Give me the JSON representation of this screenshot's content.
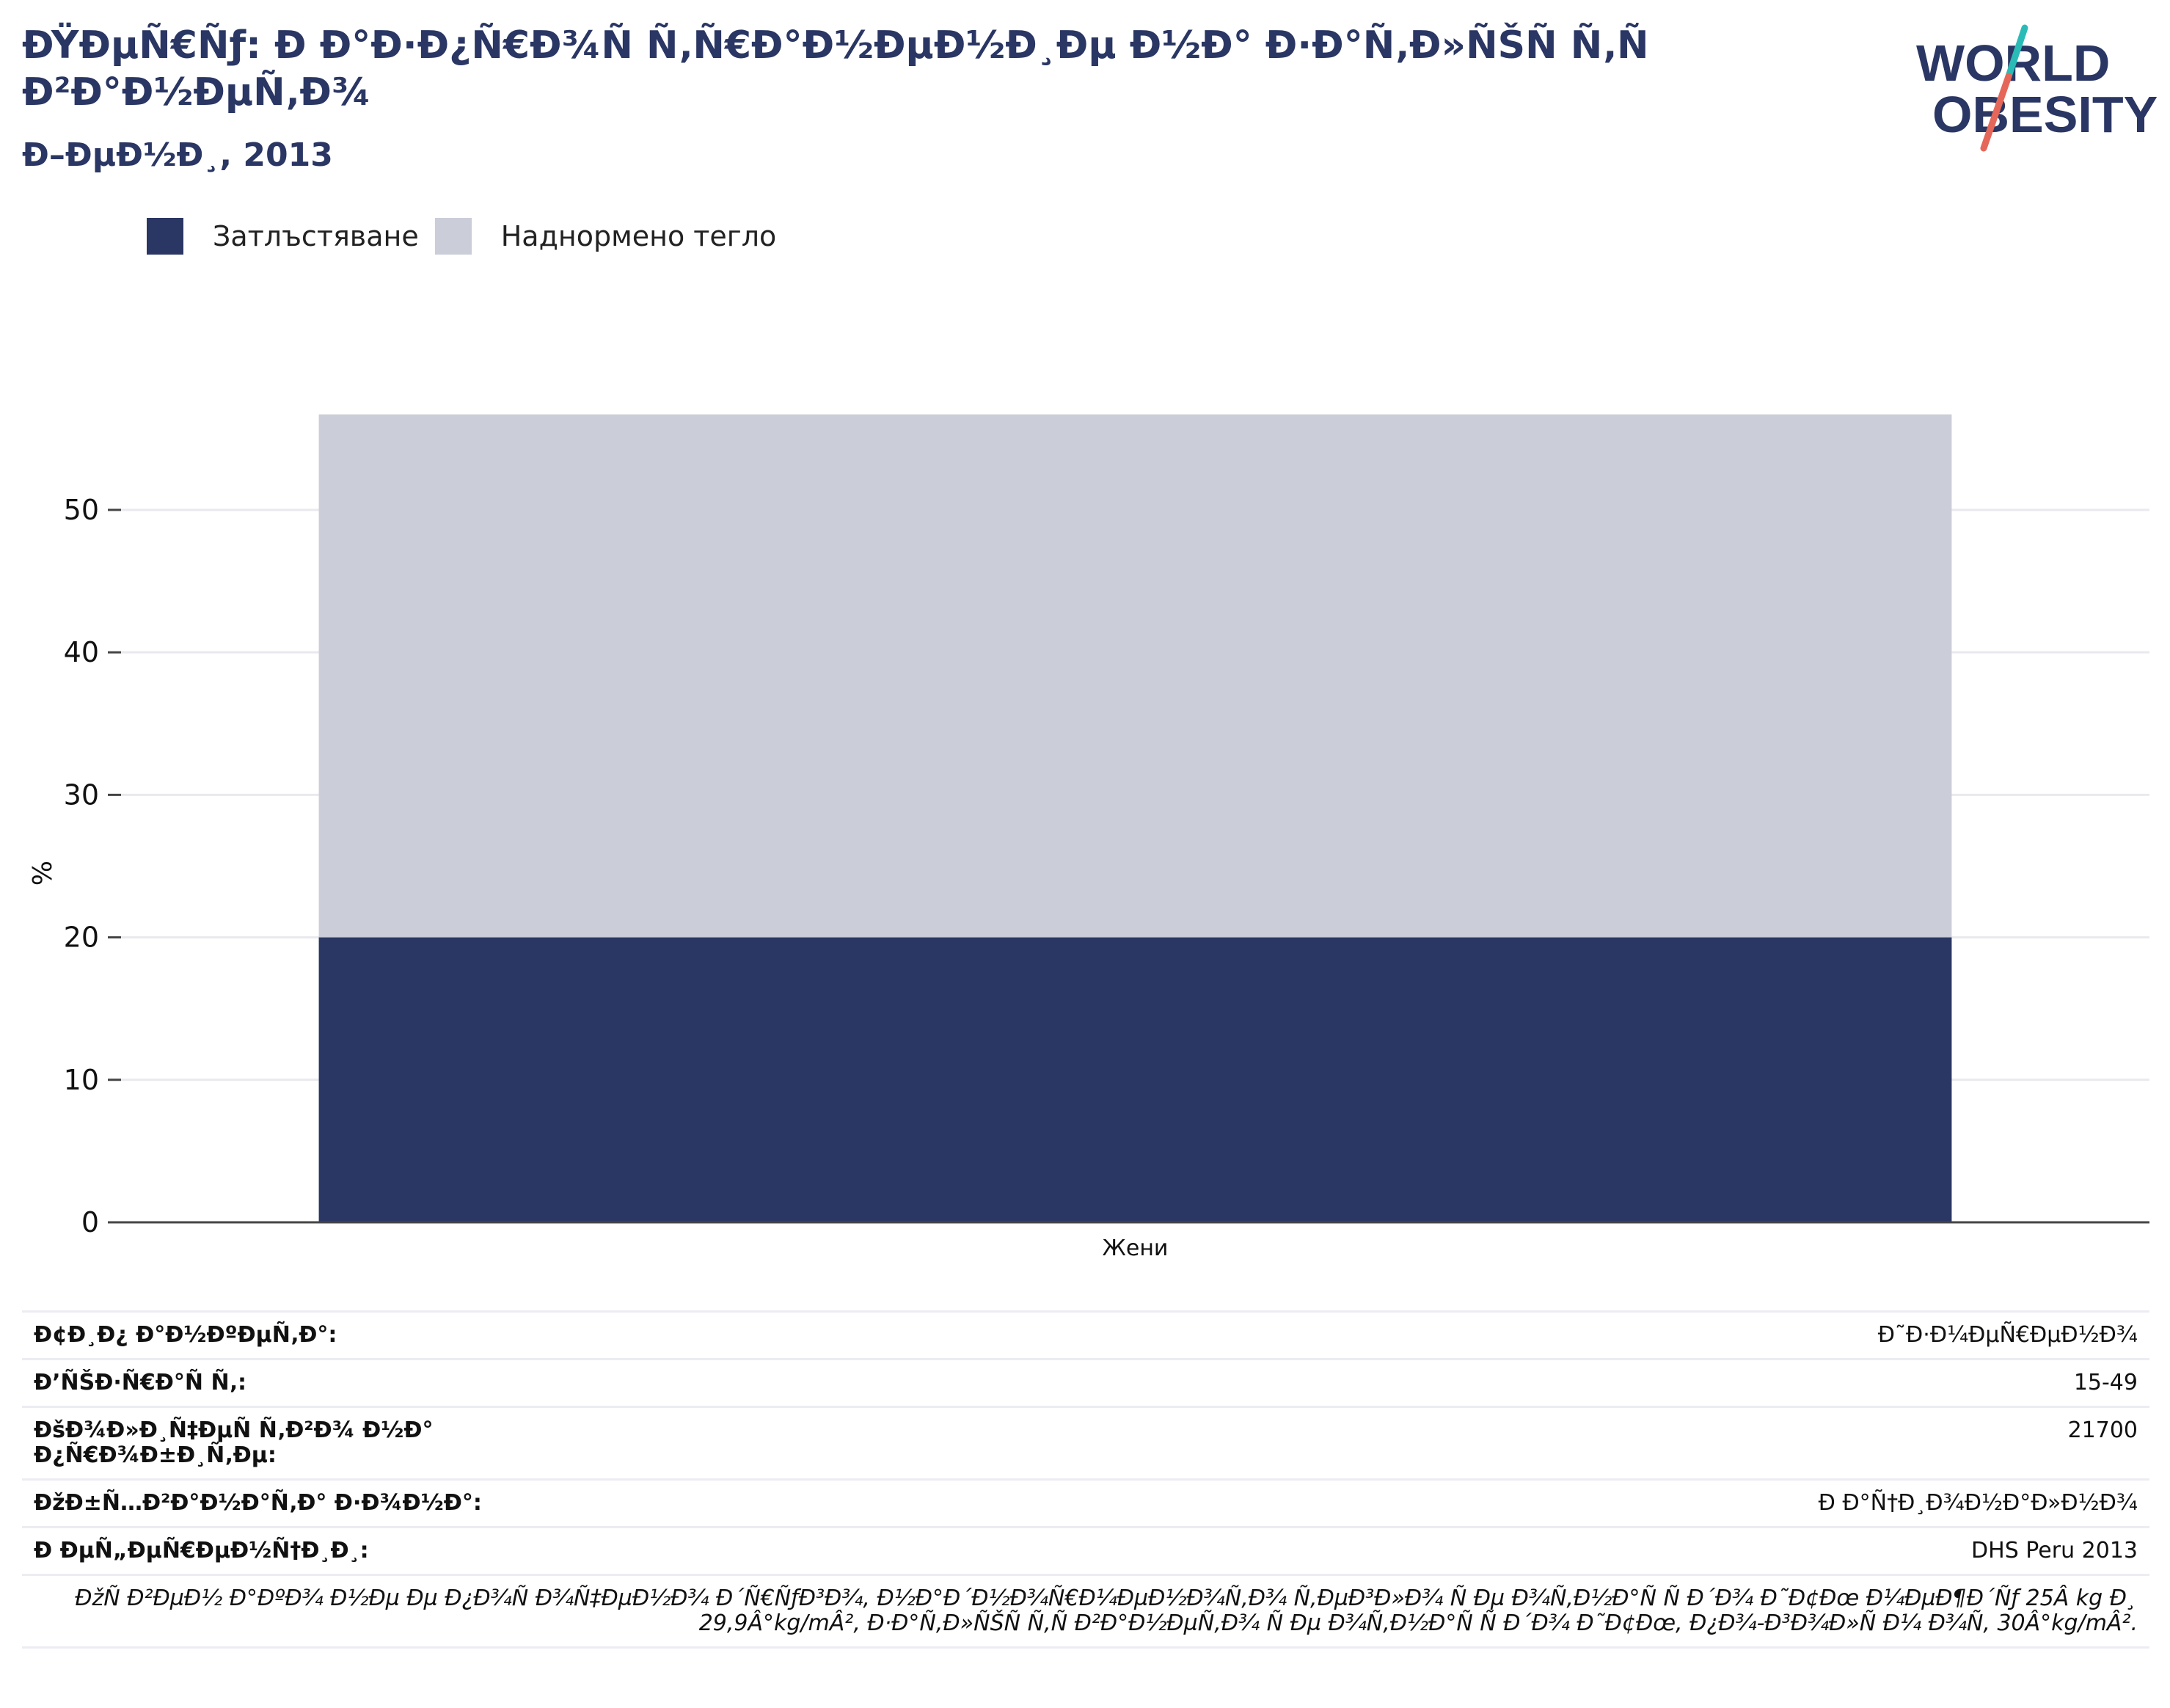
{
  "header": {
    "title": "ÐŸÐµÑ€Ñƒ: Ð Ð°Ð·Ð¿Ñ€Ð¾Ñ Ñ‚Ñ€Ð°Ð½ÐµÐ½Ð¸Ðµ Ð½Ð° Ð·Ð°Ñ‚Ð»ÑŠÑ Ñ‚Ñ Ð²Ð°Ð½ÐµÑ‚Ð¾",
    "subtitle": "Ð–ÐµÐ½Ð¸, 2013",
    "logo_line1": "WORLD",
    "logo_line2": "OBESITY"
  },
  "colors": {
    "obesity": "#2a3663",
    "overweight": "#cbcdd9",
    "logo_text": "#2a3663",
    "logo_slash_teal": "#2bbbb7",
    "logo_slash_red": "#e5675a"
  },
  "chart_data": {
    "type": "bar",
    "stacked": true,
    "categories": [
      "Жени"
    ],
    "series": [
      {
        "name": "Затлъстяване",
        "values": [
          20.0
        ]
      },
      {
        "name": "Наднормено тегло",
        "values": [
          36.7
        ]
      }
    ],
    "ylabel": "%",
    "ylim": [
      0,
      57
    ],
    "yticks": [
      0,
      10,
      20,
      30,
      40,
      50
    ],
    "grid": true,
    "legend": "top-left"
  },
  "info": {
    "rows": [
      {
        "label": "Ð¢Ð¸Ð¿ Ð°Ð½ÐºÐµÑ‚Ð°:",
        "value": "Ð˜Ð·Ð¼ÐµÑ€ÐµÐ½Ð¾"
      },
      {
        "label": "Ð’ÑŠÐ·Ñ€Ð°Ñ Ñ‚:",
        "value": "15-49"
      },
      {
        "label": "ÐšÐ¾Ð»Ð¸Ñ‡ÐµÑ Ñ‚Ð²Ð¾ Ð½Ð° Ð¿Ñ€Ð¾Ð±Ð¸Ñ‚Ðµ:",
        "value": "21700"
      },
      {
        "label": "ÐžÐ±Ñ…Ð²Ð°Ð½Ð°Ñ‚Ð° Ð·Ð¾Ð½Ð°:",
        "value": "Ð Ð°Ñ†Ð¸Ð¾Ð½Ð°Ð»Ð½Ð¾"
      },
      {
        "label": "Ð ÐµÑ„ÐµÑ€ÐµÐ½Ñ†Ð¸Ð¸:",
        "value": "DHS Peru 2013"
      }
    ],
    "note": "ÐžÑ Ð²ÐµÐ½ Ð°ÐºÐ¾ Ð½Ðµ Ðµ Ð¿Ð¾Ñ Ð¾Ñ‡ÐµÐ½Ð¾ Ð´Ñ€ÑƒÐ³Ð¾, Ð½Ð°Ð´Ð½Ð¾Ñ€Ð¼ÐµÐ½Ð¾Ñ‚Ð¾ Ñ‚ÐµÐ³Ð»Ð¾ Ñ Ðµ Ð¾Ñ‚Ð½Ð°Ñ Ñ Ð´Ð¾ Ð˜Ð¢Ðœ Ð¼ÐµÐ¶Ð´Ñƒ 25Â kg Ð¸ 29,9Â°kg/mÂ², Ð·Ð°Ñ‚Ð»ÑŠÑ Ñ‚Ñ Ð²Ð°Ð½ÐµÑ‚Ð¾ Ñ Ðµ Ð¾Ñ‚Ð½Ð°Ñ Ñ Ð´Ð¾ Ð˜Ð¢Ðœ, Ð¿Ð¾-Ð³Ð¾Ð»Ñ Ð¼ Ð¾Ñ‚ 30Â°kg/mÂ²."
  }
}
